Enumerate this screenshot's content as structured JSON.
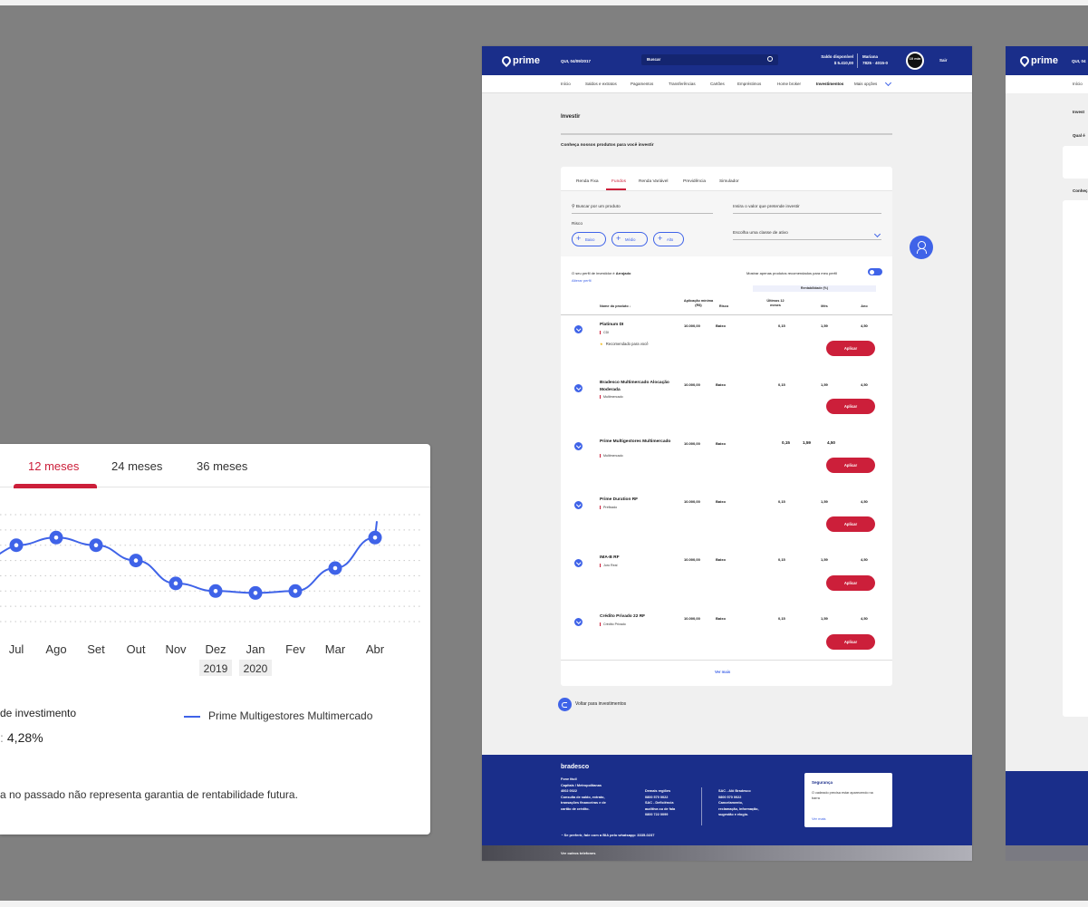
{
  "chart_card": {
    "tabs": [
      {
        "label": "12 meses",
        "active": true
      },
      {
        "label": "24 meses",
        "active": false
      },
      {
        "label": "36 meses",
        "active": false
      }
    ],
    "investment_label": "de investimento",
    "investment_value": "4,28%",
    "investment_prefix": ":",
    "legend": "Prime Multigestores Multimercado",
    "disclaimer": "a no passado não representa garantia de rentabilidade futura.",
    "series_color": "#3f63e8"
  },
  "chart_data": {
    "type": "line",
    "categories": [
      "Jul",
      "Ago",
      "Set",
      "Out",
      "Nov",
      "Dez",
      "Jan",
      "Fev",
      "Mar",
      "Abr"
    ],
    "year_labels": [
      {
        "category": "Dez",
        "label": "2019"
      },
      {
        "category": "Jan",
        "label": "2020"
      }
    ],
    "series": [
      {
        "name": "Prime Multigestores Multimercado",
        "values": [
          4.8,
          5.0,
          4.8,
          4.4,
          3.8,
          3.6,
          3.55,
          3.6,
          4.2,
          5.0
        ]
      }
    ],
    "title": "",
    "xlabel": "",
    "ylabel": "",
    "ylim": [
      2.8,
      5.6
    ],
    "grid": true,
    "legend_position": "bottom-right"
  },
  "header": {
    "logo": "prime",
    "date": "QUI, 04/09/2017",
    "search_label": "Buscar",
    "saldo_label": "Saldo disponível",
    "saldo_value": "$ 5.410,00",
    "user_name": "Mariana",
    "user_account": "7825 · 4015-0",
    "timer": "10 min",
    "logout": "Sair"
  },
  "nav": [
    "Início",
    "Saldos e extratos",
    "Pagamentos",
    "Transferências",
    "Cartões",
    "Empréstimos",
    "Home broker",
    "Investimentos",
    "Mais opções"
  ],
  "page": {
    "title": "Investir",
    "subtitle": "Conheça nossos produtos para você investir",
    "tabs": [
      "Renda Fixa",
      "Fundos",
      "Renda Variável",
      "Previdência",
      "Simulador"
    ],
    "active_tab": "Fundos",
    "search_placeholder": "Buscar por um produto",
    "value_placeholder": "Insira o valor que pretende investir",
    "risk_label": "Risco",
    "risk_options": [
      "Baixo",
      "Médio",
      "Alto"
    ],
    "asset_class": "Escolha uma classe de ativo",
    "profile_prefix": "O seu perfil de investidor é",
    "profile_value": "Arrojado",
    "profile_link": "Alterar perfil",
    "toggle_label": "Mostrar apenas produtos recomendados para meu perfil",
    "rent_band": "Rentabilidade (%)",
    "columns": {
      "name": "Nome do produto",
      "min_app": "Aplicação mínima (R$)",
      "risk": "Risco",
      "last12": "Últimos 12 meses",
      "month": "Mês",
      "year": "Ano"
    },
    "products": [
      {
        "name": "Platinum DI",
        "category": "CDI",
        "recommended": "Recomendado para você",
        "min": "10.000,00",
        "risk": "Baixo",
        "last12": "0,15",
        "month": "1,59",
        "year": "4,50"
      },
      {
        "name": "Bradesco Multimercado Alocação Moderada",
        "category": "Multimercado",
        "min": "10.000,00",
        "risk": "Baixo",
        "last12": "0,15",
        "month": "1,59",
        "year": "4,50"
      },
      {
        "name": "Prime Multigestores Multimercado",
        "category": "Multimercado",
        "min": "10.000,00",
        "risk": "Baixo",
        "last12": "0,15",
        "month": "1,59",
        "year": "4,50",
        "inline": true
      },
      {
        "name": "Prime Duration RF",
        "category": "Prefixado",
        "min": "10.000,00",
        "risk": "Baixo",
        "last12": "0,15",
        "month": "1,59",
        "year": "4,50"
      },
      {
        "name": "IMA-B RF",
        "category": "Juro Real",
        "min": "10.000,00",
        "risk": "Baixo",
        "last12": "0,15",
        "month": "1,59",
        "year": "4,50"
      },
      {
        "name": "Crédito Privado 22 RF",
        "category": "Crédito Privado",
        "min": "10.000,00",
        "risk": "Baixo",
        "last12": "0,15",
        "month": "1,59",
        "year": "4,50"
      }
    ],
    "apply_label": "Aplicar",
    "see_more": "Ver mais",
    "back": "Voltar para investimentos"
  },
  "footer": {
    "logo": "bradesco",
    "col1": [
      "Fone fácil",
      "Capitais / Metropolitanas",
      "4002 0022",
      "Consulta de saldo, extrato,",
      "transações financeiras e de",
      "cartão de crédito."
    ],
    "col2": [
      "Demais regiões",
      "0800 570 0022",
      "SAC - Deficiência",
      "auditiva ou de fala",
      "0800 722 0099"
    ],
    "col3": [
      "SAC - Alô Bradesco",
      "0800 570 0022",
      "Cancelamento,",
      "reclamação, informação,",
      "sugestão e elogio."
    ],
    "whatsapp": "Se preferir, fale com a BIA pelo whatsapp:  3335-0237",
    "security_title": "Segurança",
    "security_text": "O cadeado precisa estar aparecendo na barra",
    "security_link": "Ver mais",
    "other_phones": "Ver outros telefones"
  },
  "page2": {
    "logo": "prime",
    "date": "QUI, 04",
    "nav_first": "Início",
    "title": "Invest",
    "question": "Qual é",
    "subtitle": "Conheç"
  }
}
